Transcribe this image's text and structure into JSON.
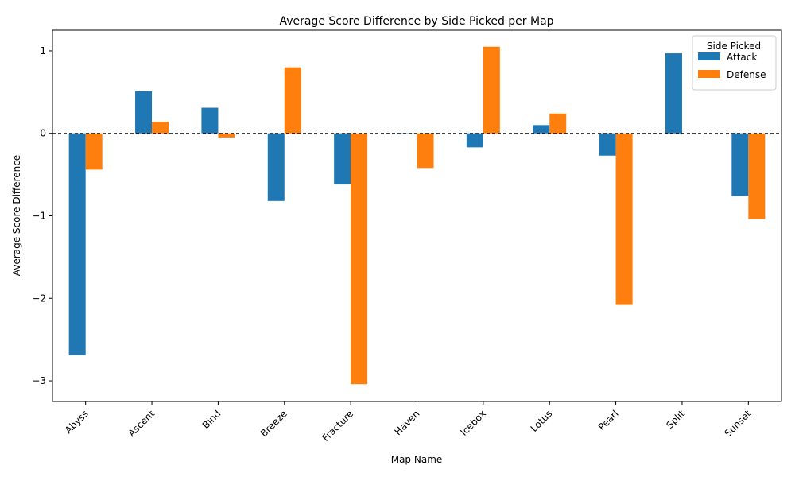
{
  "chart_data": {
    "type": "bar",
    "title": "Average Score Difference by Side Picked per Map",
    "xlabel": "Map Name",
    "ylabel": "Average Score Difference",
    "categories": [
      "Abyss",
      "Ascent",
      "Bind",
      "Breeze",
      "Fracture",
      "Haven",
      "Icebox",
      "Lotus",
      "Pearl",
      "Split",
      "Sunset"
    ],
    "series": [
      {
        "name": "Attack",
        "color": "#1f77b4",
        "values": [
          -2.69,
          0.51,
          0.31,
          -0.82,
          -0.62,
          0.0,
          -0.17,
          0.1,
          -0.27,
          0.97,
          -0.76
        ]
      },
      {
        "name": "Defense",
        "color": "#ff7f0e",
        "values": [
          -0.44,
          0.14,
          -0.05,
          0.8,
          -3.04,
          -0.42,
          1.05,
          0.24,
          -2.08,
          null,
          -1.04
        ]
      }
    ],
    "ylim": [
      -3.25,
      1.25
    ],
    "yticks": [
      1,
      0,
      -1,
      -2,
      -3
    ],
    "ytick_labels": [
      "1",
      "0",
      "−1",
      "−2",
      "−3"
    ],
    "zero_line": true,
    "grid": false,
    "legend": {
      "title": "Side Picked",
      "placement": "top-right"
    }
  }
}
